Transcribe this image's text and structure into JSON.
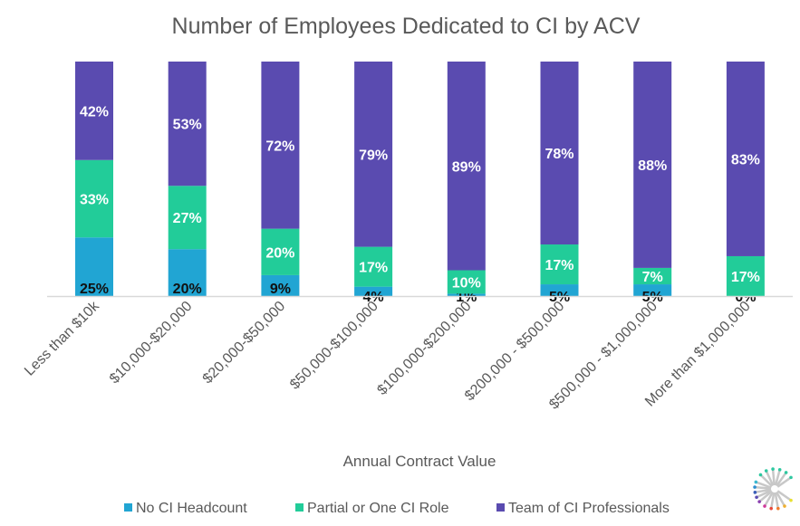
{
  "chart_data": {
    "type": "bar",
    "stacked": true,
    "title": "Number of Employees Dedicated to CI by ACV",
    "xlabel": "Annual Contract Value",
    "ylabel": "",
    "categories": [
      "Less than $10k",
      "$10,000-$20,000",
      "$20,000-$50,000",
      "$50,000-$100,000",
      "$100,000-$200,000",
      "$200,000 - $500,000",
      "$500,000 - $1,000,000",
      "More than $1,000,000"
    ],
    "series": [
      {
        "name": "No CI Headcount",
        "color": "#21A5D3",
        "label_color": "#111111",
        "values": [
          25,
          20,
          9,
          4,
          1,
          5,
          5,
          0
        ]
      },
      {
        "name": "Partial or One CI Role",
        "color": "#22CC99",
        "label_color": "#ffffff",
        "values": [
          33,
          27,
          20,
          17,
          10,
          17,
          7,
          17
        ]
      },
      {
        "name": "Team of CI Professionals",
        "color": "#5A4BB0",
        "label_color": "#ffffff",
        "values": [
          42,
          53,
          72,
          79,
          89,
          78,
          88,
          83
        ]
      }
    ],
    "value_suffix": "%",
    "grid": false,
    "legend_position": "bottom"
  }
}
